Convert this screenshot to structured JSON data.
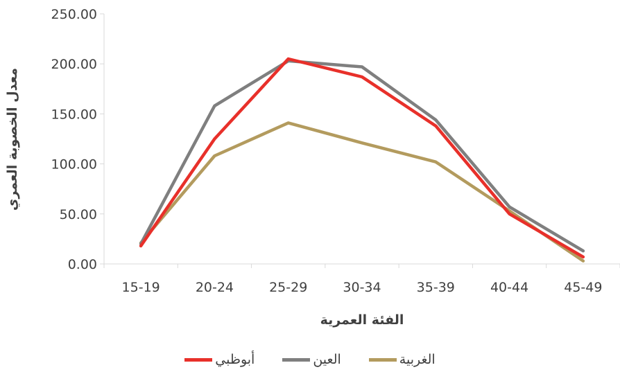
{
  "chart_data": {
    "type": "line",
    "title": "",
    "xlabel": "الفئة العمرية",
    "ylabel": "معدل الخصوبة العمري",
    "categories": [
      "15-19",
      "20-24",
      "25-29",
      "30-34",
      "35-39",
      "40-44",
      "45-49"
    ],
    "ylim": [
      0,
      250
    ],
    "yticks": [
      "0.00",
      "50.00",
      "100.00",
      "150.00",
      "200.00",
      "250.00"
    ],
    "grid": false,
    "legend_position": "bottom",
    "series": [
      {
        "name": "أبوظبي",
        "color": "#e8302a",
        "values": [
          18,
          125,
          205,
          187,
          138,
          50,
          7
        ]
      },
      {
        "name": "العين",
        "color": "#7f7f7f",
        "values": [
          20,
          158,
          203,
          197,
          144,
          57,
          13
        ]
      },
      {
        "name": "الغربية",
        "color": "#b39b5e",
        "values": [
          21,
          108,
          141,
          121,
          102,
          53,
          3
        ]
      }
    ]
  }
}
